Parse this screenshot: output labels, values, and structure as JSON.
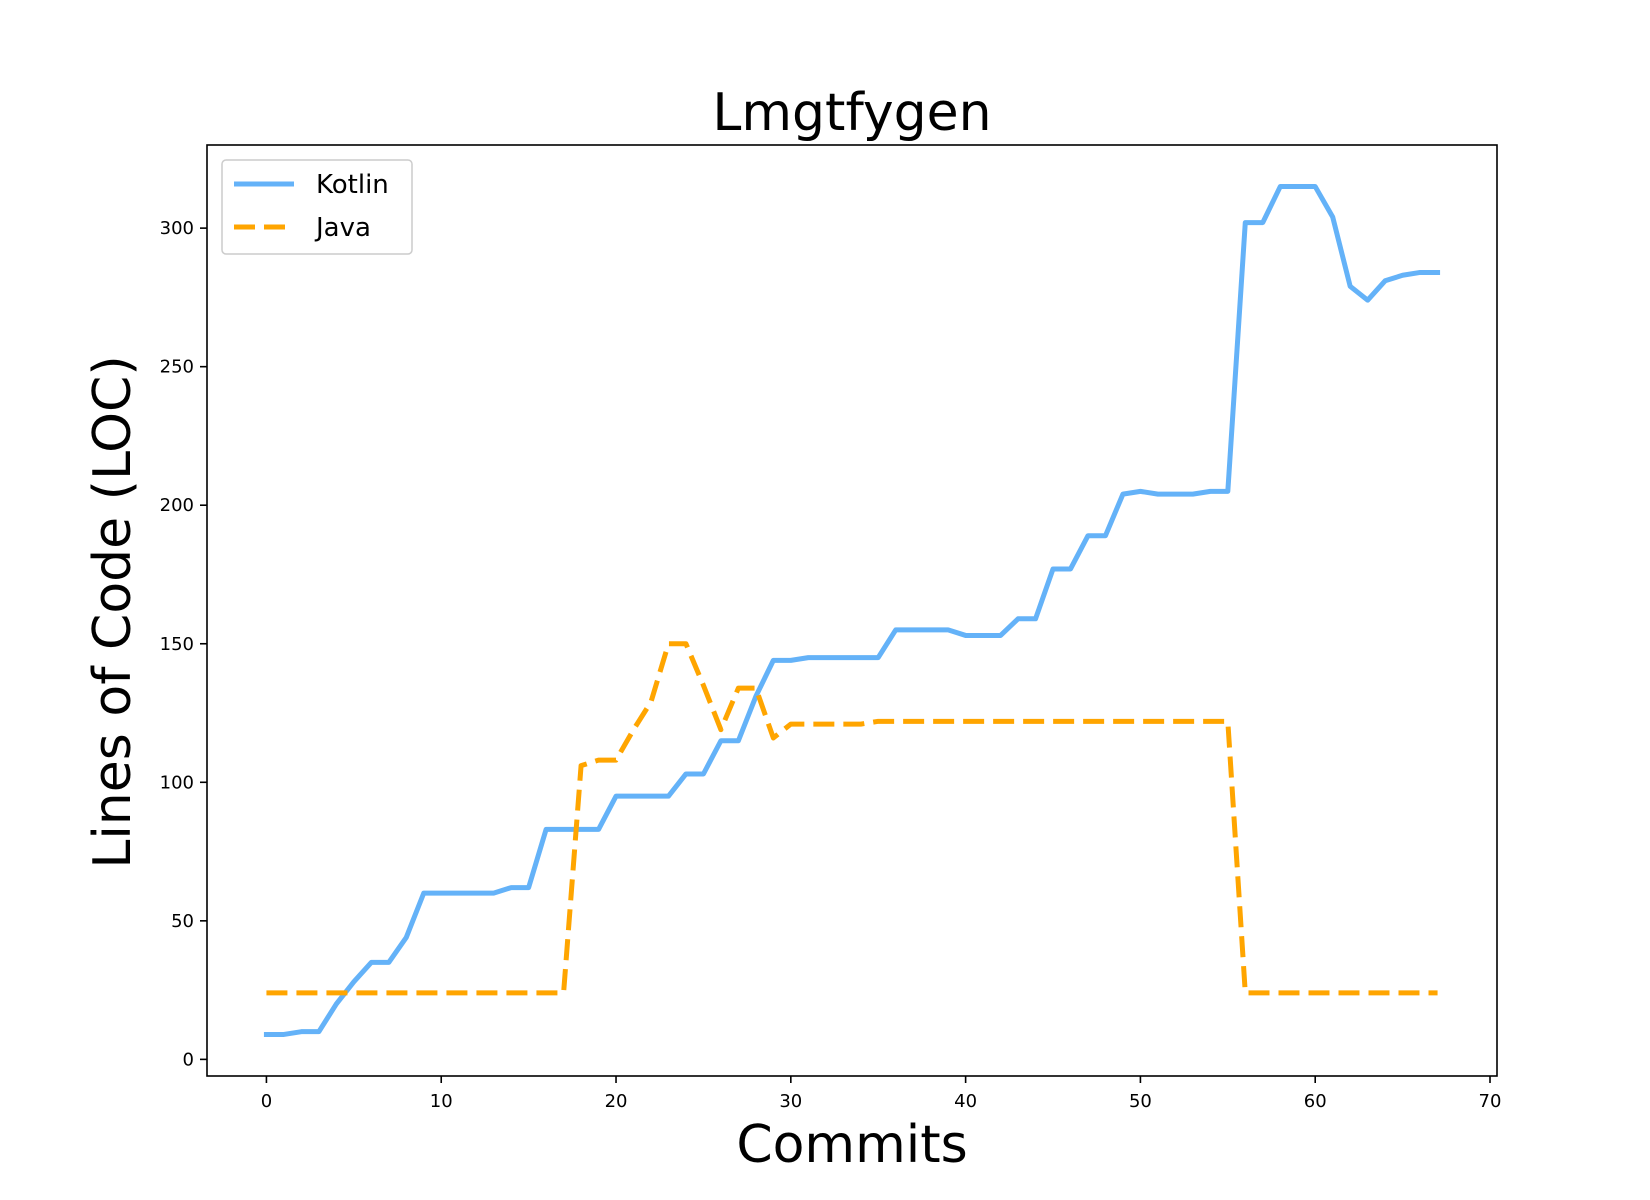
{
  "chart_data": {
    "type": "line",
    "title": "Lmgtfygen",
    "xlabel": "Commits",
    "ylabel": "Lines of Code (LOC)",
    "xlim": [
      -3.4,
      70.4
    ],
    "ylim": [
      -6,
      330
    ],
    "xticks": [
      0,
      10,
      20,
      30,
      40,
      50,
      60,
      70
    ],
    "yticks": [
      0,
      50,
      100,
      150,
      200,
      250,
      300
    ],
    "grid": false,
    "legend_position": "upper left",
    "series": [
      {
        "name": "Kotlin",
        "color": "#64b2f8",
        "style": "solid",
        "x": [
          0,
          1,
          2,
          3,
          4,
          5,
          6,
          7,
          8,
          9,
          10,
          11,
          12,
          13,
          14,
          15,
          16,
          17,
          18,
          19,
          20,
          21,
          22,
          23,
          24,
          25,
          26,
          27,
          28,
          29,
          30,
          31,
          32,
          33,
          34,
          35,
          36,
          37,
          38,
          39,
          40,
          41,
          42,
          43,
          44,
          45,
          46,
          47,
          48,
          49,
          50,
          51,
          52,
          53,
          54,
          55,
          56,
          57,
          58,
          59,
          60,
          61,
          62,
          63,
          64,
          65,
          66,
          67
        ],
        "y": [
          9,
          9,
          10,
          10,
          20,
          28,
          35,
          35,
          44,
          60,
          60,
          60,
          60,
          60,
          62,
          62,
          83,
          83,
          83,
          83,
          95,
          95,
          95,
          95,
          103,
          103,
          115,
          115,
          131,
          144,
          144,
          145,
          145,
          145,
          145,
          145,
          155,
          155,
          155,
          155,
          153,
          153,
          153,
          159,
          159,
          177,
          177,
          189,
          189,
          204,
          205,
          204,
          204,
          204,
          205,
          205,
          302,
          302,
          315,
          315,
          315,
          304,
          279,
          274,
          281,
          283,
          284,
          284
        ]
      },
      {
        "name": "Java",
        "color": "#ffa500",
        "style": "dashed",
        "x": [
          0,
          1,
          2,
          3,
          4,
          5,
          6,
          7,
          8,
          9,
          10,
          11,
          12,
          13,
          14,
          15,
          16,
          17,
          18,
          19,
          20,
          21,
          22,
          23,
          24,
          25,
          26,
          27,
          28,
          29,
          30,
          31,
          32,
          33,
          34,
          35,
          36,
          37,
          38,
          39,
          40,
          41,
          42,
          43,
          44,
          45,
          46,
          47,
          48,
          49,
          50,
          51,
          52,
          53,
          54,
          55,
          56,
          57,
          58,
          59,
          60,
          61,
          62,
          63,
          64,
          65,
          66,
          67
        ],
        "y": [
          24,
          24,
          24,
          24,
          24,
          24,
          24,
          24,
          24,
          24,
          24,
          24,
          24,
          24,
          24,
          24,
          24,
          24,
          106,
          108,
          108,
          119,
          129,
          150,
          150,
          135,
          119,
          134,
          134,
          116,
          121,
          121,
          121,
          121,
          121,
          122,
          122,
          122,
          122,
          122,
          122,
          122,
          122,
          122,
          122,
          122,
          122,
          122,
          122,
          122,
          122,
          122,
          122,
          122,
          122,
          122,
          24,
          24,
          24,
          24,
          24,
          24,
          24,
          24,
          24,
          24,
          24,
          24
        ]
      }
    ]
  }
}
